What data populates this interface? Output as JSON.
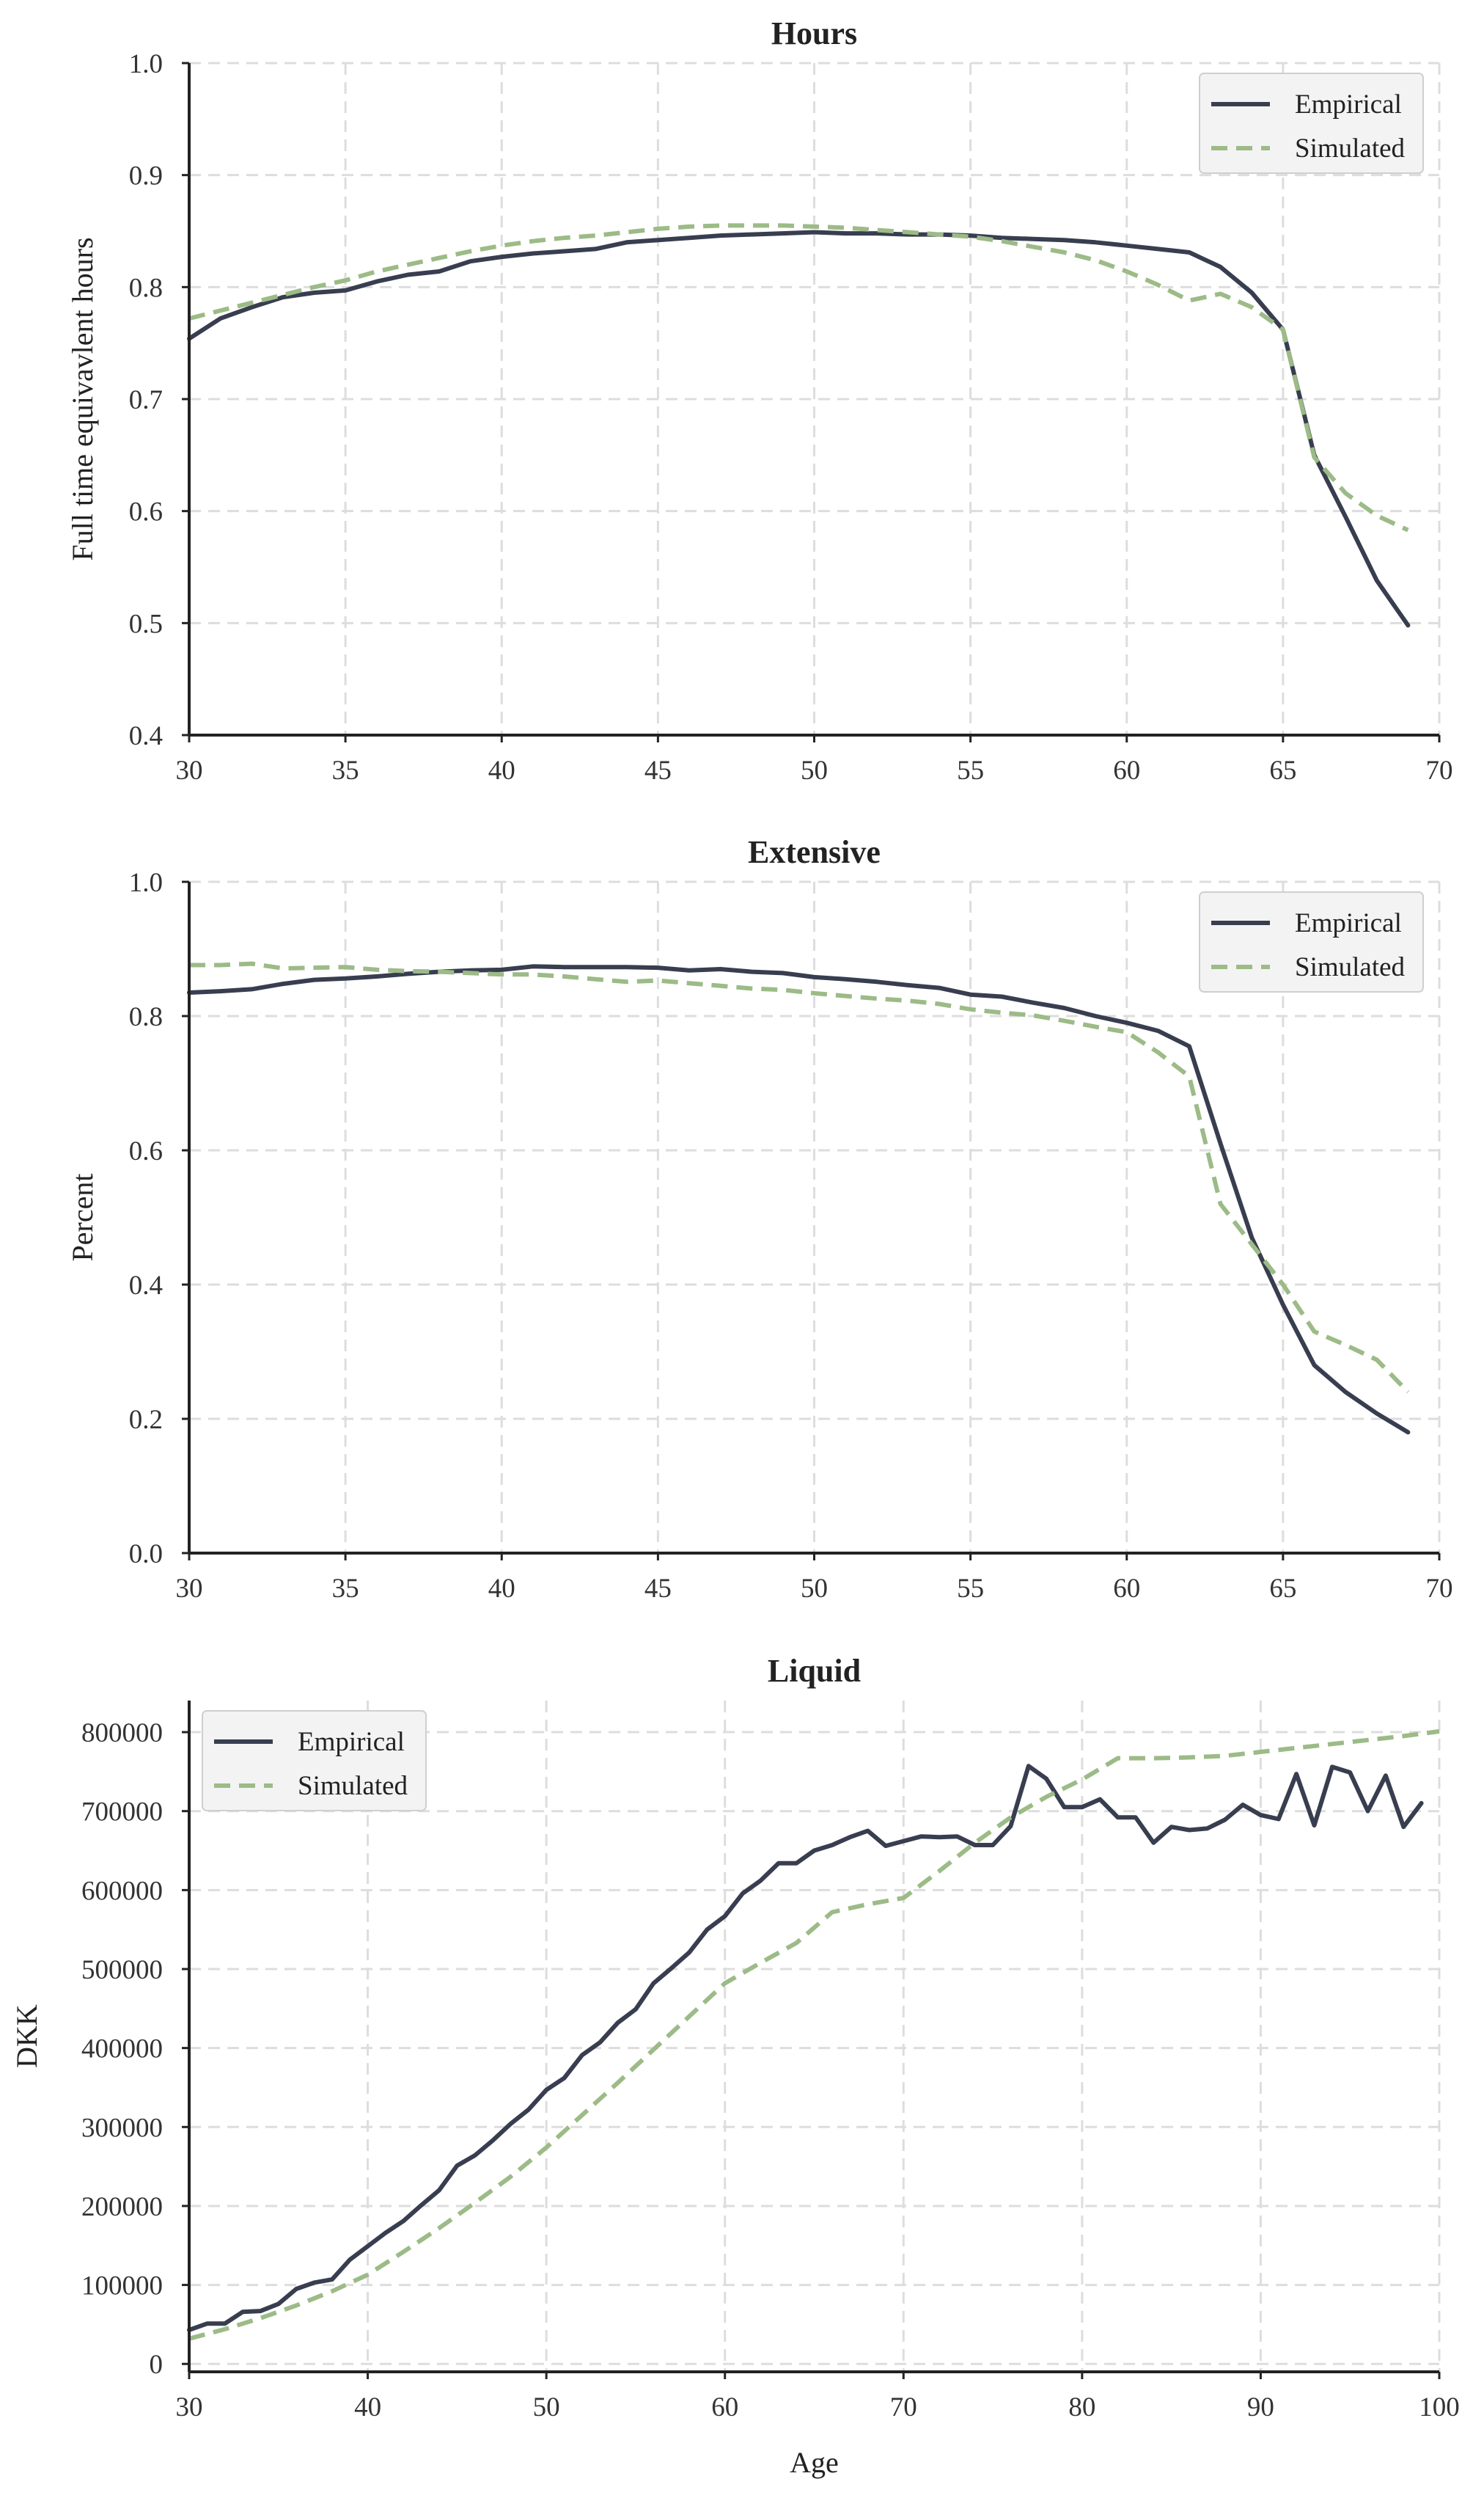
{
  "colors": {
    "empirical": "#383e4f",
    "simulated": "#9cbb87"
  },
  "chart_data": [
    {
      "id": "hours",
      "type": "line",
      "title": "Hours",
      "xlabel": "",
      "ylabel": "Full time equivavlent hours",
      "xlim": [
        30,
        70
      ],
      "ylim": [
        0.4,
        1.0
      ],
      "xticks": [
        30,
        35,
        40,
        45,
        50,
        55,
        60,
        65,
        70
      ],
      "yticks": [
        0.4,
        0.5,
        0.6,
        0.7,
        0.8,
        0.9,
        1.0
      ],
      "ytick_labels": [
        "0.4",
        "0.5",
        "0.6",
        "0.7",
        "0.8",
        "0.9",
        "1.0"
      ],
      "grid": true,
      "legend": "top-right",
      "x": [
        30,
        31,
        32,
        33,
        34,
        35,
        36,
        37,
        38,
        39,
        40,
        41,
        42,
        43,
        44,
        45,
        46,
        47,
        48,
        49,
        50,
        51,
        52,
        53,
        54,
        55,
        56,
        57,
        58,
        59,
        60,
        61,
        62,
        63,
        64,
        65,
        66,
        67,
        68,
        69
      ],
      "series": [
        {
          "name": "Empirical",
          "style": "solid",
          "values": [
            0.754,
            0.772,
            0.782,
            0.791,
            0.795,
            0.797,
            0.805,
            0.811,
            0.814,
            0.823,
            0.827,
            0.83,
            0.832,
            0.834,
            0.84,
            0.842,
            0.844,
            0.846,
            0.847,
            0.848,
            0.849,
            0.848,
            0.848,
            0.847,
            0.847,
            0.846,
            0.844,
            0.843,
            0.842,
            0.84,
            0.837,
            0.834,
            0.831,
            0.818,
            0.795,
            0.762,
            0.65,
            0.595,
            0.538,
            0.498
          ]
        },
        {
          "name": "Simulated",
          "style": "dashed",
          "values": [
            0.772,
            0.779,
            0.786,
            0.793,
            0.8,
            0.806,
            0.814,
            0.82,
            0.826,
            0.832,
            0.837,
            0.841,
            0.844,
            0.846,
            0.849,
            0.852,
            0.854,
            0.855,
            0.855,
            0.855,
            0.854,
            0.853,
            0.851,
            0.849,
            0.847,
            0.845,
            0.841,
            0.836,
            0.831,
            0.824,
            0.814,
            0.802,
            0.788,
            0.794,
            0.782,
            0.762,
            0.648,
            0.616,
            0.596,
            0.583
          ]
        }
      ]
    },
    {
      "id": "extensive",
      "type": "line",
      "title": "Extensive",
      "xlabel": "",
      "ylabel": "Percent",
      "xlim": [
        30,
        70
      ],
      "ylim": [
        0.0,
        1.0
      ],
      "xticks": [
        30,
        35,
        40,
        45,
        50,
        55,
        60,
        65,
        70
      ],
      "yticks": [
        0.0,
        0.2,
        0.4,
        0.6,
        0.8,
        1.0
      ],
      "ytick_labels": [
        "0.0",
        "0.2",
        "0.4",
        "0.6",
        "0.8",
        "1.0"
      ],
      "grid": true,
      "legend": "top-right",
      "x": [
        30,
        31,
        32,
        33,
        34,
        35,
        36,
        37,
        38,
        39,
        40,
        41,
        42,
        43,
        44,
        45,
        46,
        47,
        48,
        49,
        50,
        51,
        52,
        53,
        54,
        55,
        56,
        57,
        58,
        59,
        60,
        61,
        62,
        63,
        64,
        65,
        66,
        67,
        68,
        69
      ],
      "series": [
        {
          "name": "Empirical",
          "style": "solid",
          "values": [
            0.835,
            0.837,
            0.84,
            0.848,
            0.854,
            0.856,
            0.859,
            0.863,
            0.866,
            0.868,
            0.869,
            0.874,
            0.873,
            0.873,
            0.873,
            0.872,
            0.868,
            0.87,
            0.866,
            0.864,
            0.858,
            0.855,
            0.851,
            0.846,
            0.842,
            0.832,
            0.829,
            0.82,
            0.812,
            0.8,
            0.79,
            0.778,
            0.755,
            0.61,
            0.47,
            0.37,
            0.28,
            0.24,
            0.208,
            0.18
          ]
        },
        {
          "name": "Simulated",
          "style": "dashed",
          "values": [
            0.876,
            0.876,
            0.878,
            0.871,
            0.872,
            0.873,
            0.869,
            0.867,
            0.866,
            0.864,
            0.862,
            0.862,
            0.859,
            0.855,
            0.851,
            0.853,
            0.849,
            0.845,
            0.841,
            0.839,
            0.834,
            0.83,
            0.826,
            0.823,
            0.818,
            0.81,
            0.805,
            0.801,
            0.793,
            0.784,
            0.776,
            0.746,
            0.71,
            0.52,
            0.46,
            0.4,
            0.33,
            0.31,
            0.288,
            0.24
          ]
        }
      ]
    },
    {
      "id": "liquid",
      "type": "line",
      "title": "Liquid",
      "xlabel": "Age",
      "ylabel": "DKK",
      "xlim": [
        30,
        100
      ],
      "ylim": [
        -10000,
        840000
      ],
      "xticks": [
        30,
        40,
        50,
        60,
        70,
        80,
        90,
        100
      ],
      "yticks": [
        0,
        100000,
        200000,
        300000,
        400000,
        500000,
        600000,
        700000,
        800000
      ],
      "ytick_labels": [
        "0",
        "100000",
        "200000",
        "300000",
        "400000",
        "500000",
        "600000",
        "700000",
        "800000"
      ],
      "grid": true,
      "legend": "top-left",
      "series": [
        {
          "name": "Empirical",
          "style": "solid",
          "x": [
            30,
            31,
            32,
            33,
            34,
            35,
            36,
            37,
            38,
            39,
            40,
            41,
            42,
            43,
            44,
            45,
            46,
            47,
            48,
            49,
            50,
            51,
            52,
            53,
            54,
            55,
            56,
            57,
            58,
            59,
            60,
            61,
            62,
            63,
            64,
            65,
            66,
            67,
            68,
            69,
            70,
            71,
            72,
            73,
            74,
            75,
            76,
            77,
            78,
            79,
            80,
            81,
            82,
            83,
            84,
            85,
            86,
            87,
            88,
            89,
            90,
            91,
            92,
            93,
            94,
            95,
            96,
            97,
            98,
            99
          ],
          "values": [
            43000,
            51000,
            51000,
            66000,
            67000,
            76000,
            95000,
            103000,
            107000,
            132000,
            149000,
            166000,
            181000,
            201000,
            220000,
            251000,
            264000,
            283000,
            304000,
            322000,
            347000,
            362000,
            391000,
            407000,
            432000,
            449000,
            482000,
            501000,
            521000,
            550000,
            567000,
            596000,
            612000,
            634000,
            634000,
            650000,
            657000,
            667000,
            675000,
            656000,
            662000,
            668000,
            667000,
            668000,
            657000,
            657000,
            681000,
            757000,
            741000,
            705000,
            705000,
            715000,
            692000,
            692000,
            660000,
            680000,
            676000,
            678000,
            689000,
            708000,
            695000,
            690000,
            747000,
            682000,
            756000,
            749000,
            700000,
            745000,
            680000,
            710000
          ]
        },
        {
          "name": "Simulated",
          "style": "dashed",
          "x": [
            30,
            32,
            34,
            36,
            38,
            40,
            42,
            44,
            46,
            48,
            50,
            52,
            54,
            56,
            58,
            60,
            62,
            64,
            66,
            68,
            70,
            72,
            74,
            76,
            78,
            80,
            82,
            84,
            86,
            88,
            90,
            92,
            94,
            96,
            98,
            100
          ],
          "values": [
            32000,
            44000,
            58000,
            74000,
            92000,
            113000,
            142000,
            172000,
            204000,
            237000,
            274000,
            315000,
            356000,
            398000,
            440000,
            482000,
            508000,
            533000,
            572000,
            582000,
            590000,
            624000,
            660000,
            692000,
            718000,
            740000,
            767000,
            767000,
            768000,
            770000,
            775000,
            780000,
            785000,
            790000,
            795000,
            801000
          ]
        }
      ]
    }
  ]
}
